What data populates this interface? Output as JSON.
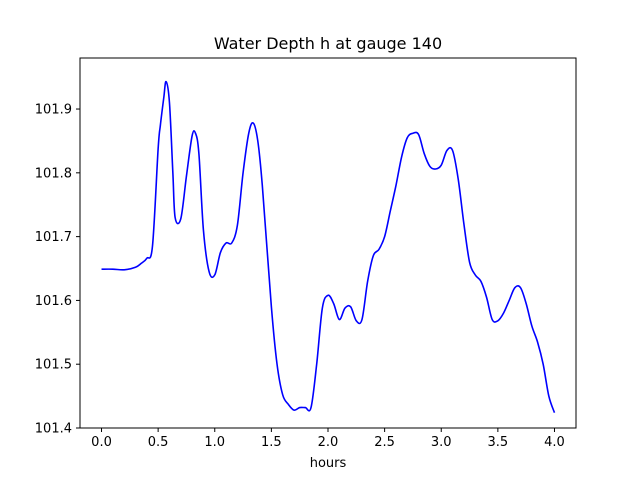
{
  "chart_data": {
    "type": "line",
    "title": "Water Depth h at gauge 140",
    "xlabel": "hours",
    "ylabel": "",
    "xlim": [
      -0.19,
      4.19
    ],
    "ylim": [
      101.4,
      101.98
    ],
    "grid": false,
    "legend": "none",
    "x_ticks": [
      0.0,
      0.5,
      1.0,
      1.5,
      2.0,
      2.5,
      3.0,
      3.5,
      4.0
    ],
    "x_tick_labels": [
      "0.0",
      "0.5",
      "1.0",
      "1.5",
      "2.0",
      "2.5",
      "3.0",
      "3.5",
      "4.0"
    ],
    "y_ticks": [
      101.4,
      101.5,
      101.6,
      101.7,
      101.8,
      101.9
    ],
    "y_tick_labels": [
      "101.4",
      "101.5",
      "101.6",
      "101.7",
      "101.8",
      "101.9"
    ],
    "series": [
      {
        "color": "#0000ff",
        "x": [
          0.0,
          0.1,
          0.2,
          0.3,
          0.35,
          0.4,
          0.45,
          0.5,
          0.52,
          0.55,
          0.57,
          0.6,
          0.63,
          0.65,
          0.7,
          0.75,
          0.8,
          0.83,
          0.86,
          0.9,
          0.95,
          1.0,
          1.05,
          1.1,
          1.15,
          1.2,
          1.25,
          1.3,
          1.34,
          1.38,
          1.42,
          1.5,
          1.55,
          1.6,
          1.65,
          1.7,
          1.75,
          1.8,
          1.85,
          1.9,
          1.95,
          2.0,
          2.05,
          2.1,
          2.15,
          2.2,
          2.25,
          2.3,
          2.35,
          2.4,
          2.45,
          2.5,
          2.55,
          2.6,
          2.65,
          2.7,
          2.75,
          2.8,
          2.85,
          2.9,
          2.95,
          3.0,
          3.05,
          3.1,
          3.15,
          3.2,
          3.25,
          3.3,
          3.35,
          3.4,
          3.45,
          3.5,
          3.55,
          3.6,
          3.65,
          3.7,
          3.75,
          3.8,
          3.85,
          3.9,
          3.95,
          4.0
        ],
        "values": [
          101.649,
          101.649,
          101.648,
          101.652,
          101.658,
          101.666,
          101.685,
          101.838,
          101.875,
          101.918,
          101.943,
          101.91,
          101.8,
          101.73,
          101.728,
          101.795,
          101.858,
          101.862,
          101.83,
          101.71,
          101.645,
          101.64,
          101.675,
          101.69,
          101.69,
          101.718,
          101.8,
          101.862,
          101.878,
          101.85,
          101.78,
          101.59,
          101.5,
          101.452,
          101.437,
          101.428,
          101.432,
          101.432,
          101.432,
          101.5,
          101.588,
          101.608,
          101.595,
          101.57,
          101.588,
          101.59,
          101.568,
          101.57,
          101.63,
          101.67,
          101.68,
          101.7,
          101.74,
          101.78,
          101.825,
          101.855,
          101.862,
          101.86,
          101.83,
          101.81,
          101.806,
          101.812,
          101.835,
          101.835,
          101.79,
          101.72,
          101.66,
          101.64,
          101.63,
          101.605,
          101.57,
          101.568,
          101.58,
          101.6,
          101.62,
          101.62,
          101.595,
          101.56,
          101.535,
          101.5,
          101.45,
          101.424
        ]
      }
    ]
  }
}
